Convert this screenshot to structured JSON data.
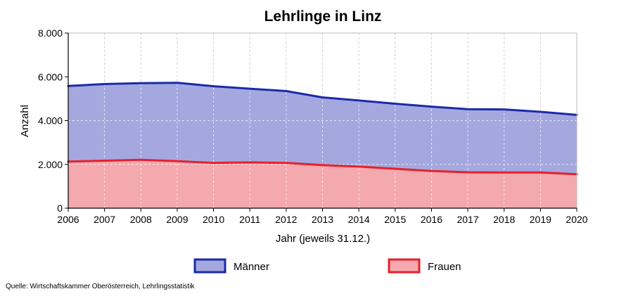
{
  "chart_data": {
    "type": "area",
    "stacked": true,
    "title": "Lehrlinge in Linz",
    "xlabel": "Jahr (jeweils 31.12.)",
    "ylabel": "Anzahl",
    "x": [
      2006,
      2007,
      2008,
      2009,
      2010,
      2011,
      2012,
      2013,
      2014,
      2015,
      2016,
      2017,
      2018,
      2019,
      2020
    ],
    "xticks": [
      "2006",
      "2007",
      "2008",
      "2009",
      "2010",
      "2011",
      "2012",
      "2013",
      "2014",
      "2015",
      "2016",
      "2017",
      "2018",
      "2019",
      "2020"
    ],
    "ylim": [
      0,
      8000
    ],
    "yticks": [
      {
        "value": 0,
        "label": "0"
      },
      {
        "value": 2000,
        "label": "2.000"
      },
      {
        "value": 4000,
        "label": "4.000"
      },
      {
        "value": 6000,
        "label": "6.000"
      },
      {
        "value": 8000,
        "label": "8.000"
      }
    ],
    "grid": true,
    "legend_position": "bottom",
    "series": [
      {
        "name": "Frauen",
        "line_color": "#e8202a",
        "fill_color": "#f4a9ae",
        "values": [
          2130,
          2170,
          2210,
          2150,
          2070,
          2090,
          2070,
          1970,
          1900,
          1800,
          1700,
          1640,
          1630,
          1630,
          1550
        ]
      },
      {
        "name": "Männer",
        "line_color": "#1c2aa8",
        "fill_color": "#a4a8df",
        "values": [
          3450,
          3500,
          3500,
          3580,
          3500,
          3370,
          3280,
          3090,
          3020,
          2970,
          2940,
          2880,
          2880,
          2770,
          2710
        ]
      }
    ]
  },
  "legend_order": [
    "Männer",
    "Frauen"
  ],
  "source": "Quelle: Wirtschaftskammer Oberösterreich, Lehrlingsstatistik"
}
